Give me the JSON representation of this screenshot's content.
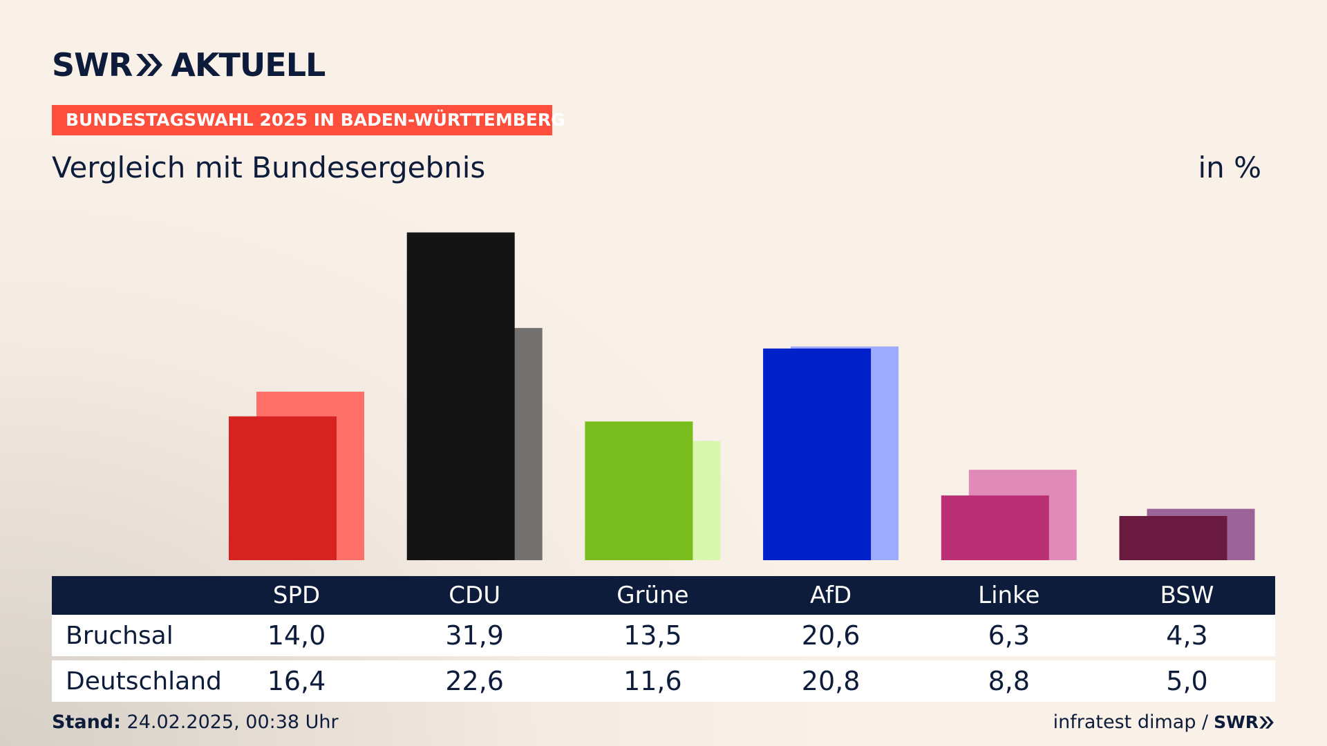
{
  "header": {
    "logo_left": "SWR",
    "logo_right": "AKTUELL",
    "banner": "BUNDESTAGSWAHL 2025 IN BADEN-WÜRTTEMBERG",
    "subtitle": "Vergleich mit Bundesergebnis",
    "unit": "in %"
  },
  "colors": {
    "navy": "#0d1c3a",
    "banner": "#ff4e3c"
  },
  "chart_data": {
    "type": "bar",
    "categories": [
      "SPD",
      "CDU",
      "Grüne",
      "AfD",
      "Linke",
      "BSW"
    ],
    "series": [
      {
        "name": "Bruchsal",
        "values": [
          14.0,
          31.9,
          13.5,
          20.6,
          6.3,
          4.3
        ],
        "display": [
          "14,0",
          "31,9",
          "13,5",
          "20,6",
          "6,3",
          "4,3"
        ]
      },
      {
        "name": "Deutschland",
        "values": [
          16.4,
          22.6,
          11.6,
          20.8,
          8.8,
          5.0
        ],
        "display": [
          "16,4",
          "22,6",
          "11,6",
          "20,8",
          "8,8",
          "5,0"
        ]
      }
    ],
    "colors_primary": [
      "#d62220",
      "#141414",
      "#79bc1e",
      "#0021c9",
      "#ba2f73",
      "#6a1a3e"
    ],
    "colors_secondary": [
      "#ff7168",
      "#737170",
      "#d8f6ae",
      "#9eaafc",
      "#e08ab7",
      "#9b6397"
    ],
    "ylim": [
      0,
      32
    ]
  },
  "footer": {
    "stand_label": "Stand:",
    "stand_value": "24.02.2025, 00:38 Uhr",
    "source": "infratest dimap /",
    "source_logo": "SWR"
  }
}
